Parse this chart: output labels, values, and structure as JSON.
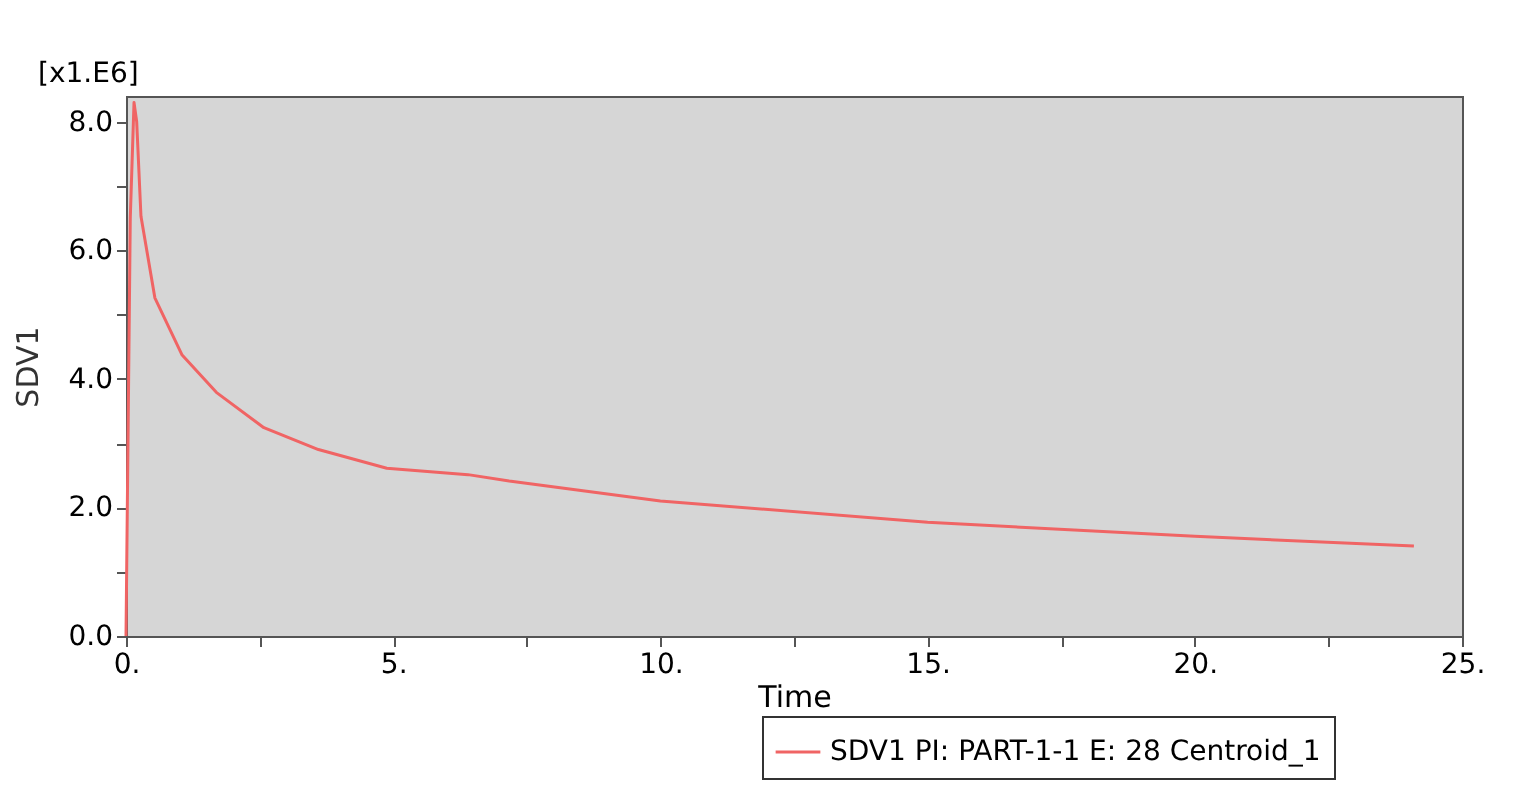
{
  "chart_data": {
    "type": "line",
    "xlabel": "Time",
    "ylabel": "SDV1",
    "annotations": [
      "[x1.E6]"
    ],
    "xlim": [
      0,
      25
    ],
    "ylim": [
      0,
      8.4
    ],
    "xticks": [
      {
        "value": 0,
        "label": "0."
      },
      {
        "value": 2.5,
        "label": null
      },
      {
        "value": 5,
        "label": "5."
      },
      {
        "value": 7.5,
        "label": null
      },
      {
        "value": 10,
        "label": "10."
      },
      {
        "value": 12.5,
        "label": null
      },
      {
        "value": 15,
        "label": "15."
      },
      {
        "value": 17.5,
        "label": null
      },
      {
        "value": 20,
        "label": "20."
      },
      {
        "value": 22.5,
        "label": null
      },
      {
        "value": 25,
        "label": "25."
      }
    ],
    "yticks": [
      {
        "value": 0,
        "label": "0.0"
      },
      {
        "value": 1,
        "label": null
      },
      {
        "value": 2,
        "label": "2.0"
      },
      {
        "value": 3,
        "label": null
      },
      {
        "value": 4,
        "label": "4.0"
      },
      {
        "value": 5,
        "label": null
      },
      {
        "value": 6,
        "label": "6.0"
      },
      {
        "value": 7,
        "label": null
      },
      {
        "value": 8,
        "label": "8.0"
      }
    ],
    "grid": false,
    "legend": "bottom right",
    "marker": "none",
    "line_style": "solid",
    "series": [
      {
        "name": "SDV1 PI: PART-1-1 E: 28 Centroid_1",
        "color": "#f06464",
        "x": [
          0,
          0.08,
          0.15,
          0.2,
          0.28,
          0.54,
          1.05,
          1.69,
          2.58,
          3.6,
          4.88,
          6.4,
          7.17,
          10,
          15,
          20,
          24.1
        ],
        "values": [
          0,
          6.5,
          8.3,
          8.0,
          6.53,
          5.26,
          4.37,
          3.79,
          3.24,
          2.9,
          2.61,
          2.51,
          2.41,
          2.1,
          1.77,
          1.55,
          1.4
        ]
      }
    ]
  }
}
